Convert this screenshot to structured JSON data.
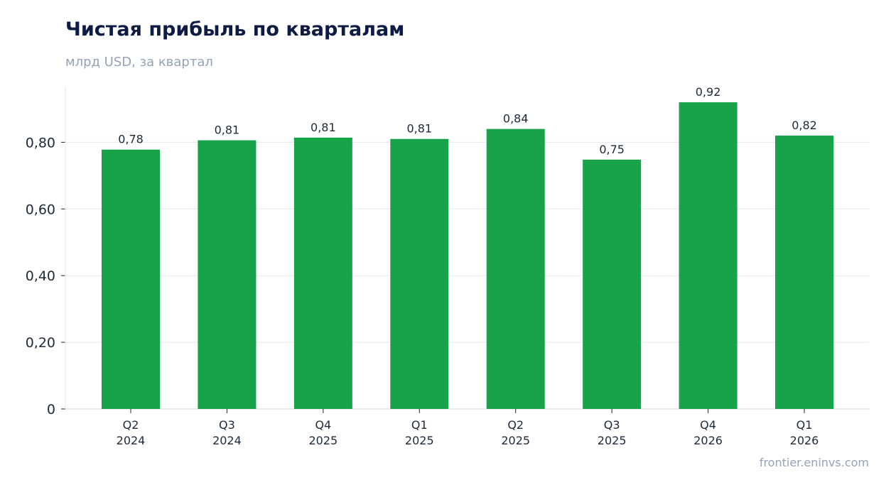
{
  "chart_data": {
    "type": "bar",
    "title": "Чистая прибыль по кварталам",
    "subtitle": "млрд USD, за квартал",
    "categories": [
      [
        "Q2",
        "2024"
      ],
      [
        "Q3",
        "2024"
      ],
      [
        "Q4",
        "2025"
      ],
      [
        "Q1",
        "2025"
      ],
      [
        "Q2",
        "2025"
      ],
      [
        "Q3",
        "2025"
      ],
      [
        "Q4",
        "2026"
      ],
      [
        "Q1",
        "2026"
      ]
    ],
    "values": [
      0.778,
      0.806,
      0.814,
      0.81,
      0.84,
      0.748,
      0.92,
      0.82
    ],
    "data_labels": [
      "0,78",
      "0,81",
      "0,81",
      "0,81",
      "0,84",
      "0,75",
      "0,92",
      "0,82"
    ],
    "yticks": [
      0,
      0.2,
      0.4,
      0.6,
      0.8
    ],
    "ytick_labels": [
      "0",
      "0,20",
      "0,40",
      "0,60",
      "0,80"
    ],
    "ylim": [
      0,
      0.967
    ],
    "grid": true,
    "bar_color": "#18a34a",
    "source": "frontier.eninvs.com"
  }
}
